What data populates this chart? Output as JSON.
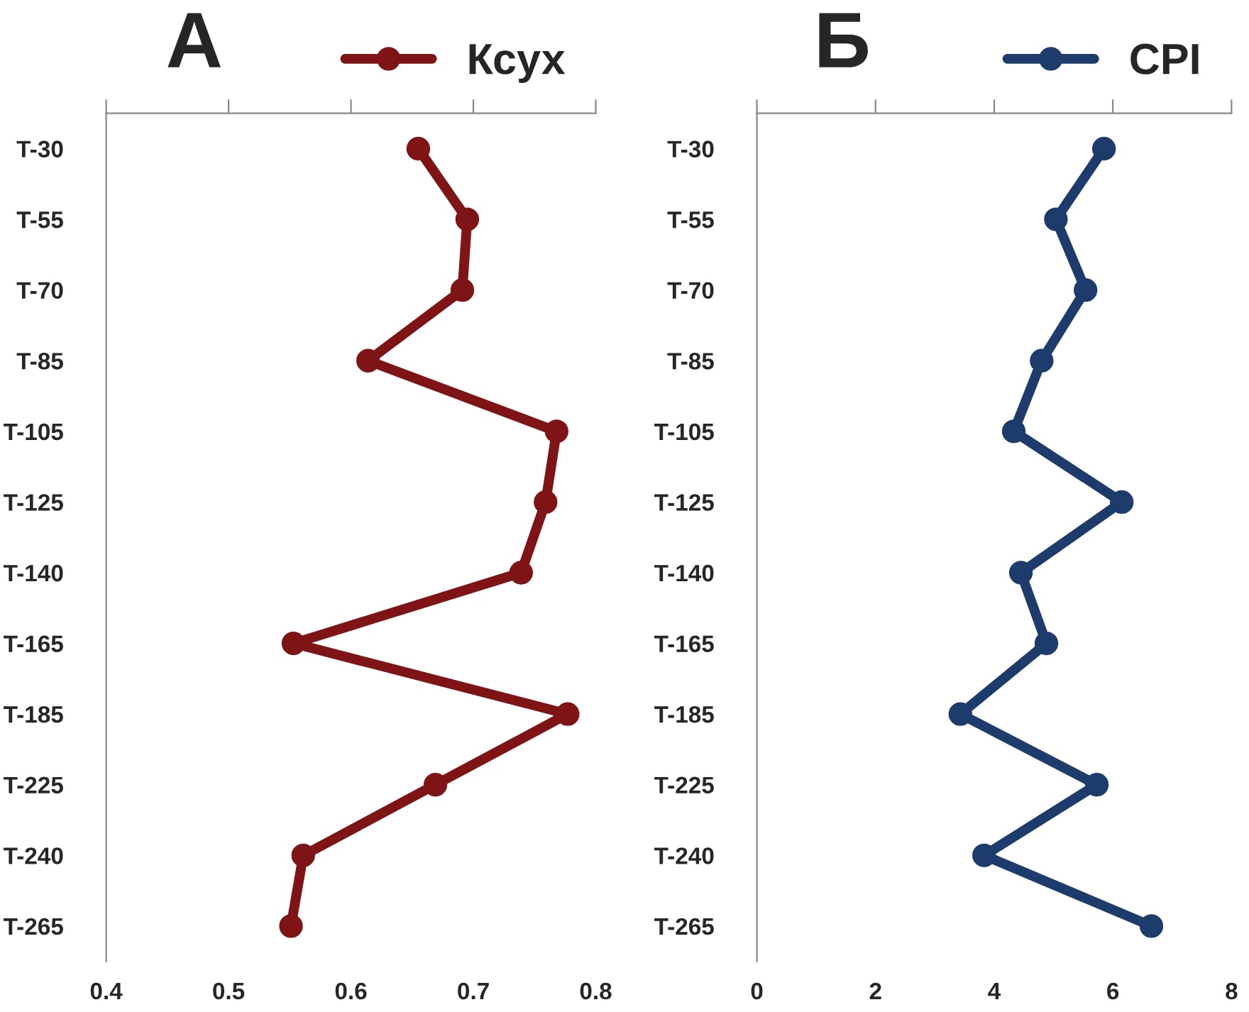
{
  "chart_data": [
    {
      "type": "line",
      "title": "А",
      "orientation": "horizontal",
      "categories": [
        "T-30",
        "T-55",
        "T-70",
        "T-85",
        "T-105",
        "T-125",
        "T-140",
        "T-165",
        "T-185",
        "T-225",
        "T-240",
        "T-265"
      ],
      "series": [
        {
          "name": "Ксух",
          "color": "#7f1416",
          "values": [
            0.655,
            0.695,
            0.691,
            0.614,
            0.768,
            0.759,
            0.739,
            0.553,
            0.777,
            0.669,
            0.561,
            0.551
          ]
        }
      ],
      "xlim": [
        0.4,
        0.8
      ],
      "xticks": [
        0.4,
        0.5,
        0.6,
        0.7,
        0.8
      ],
      "marker": "circle",
      "legend": "top right",
      "grid": false
    },
    {
      "type": "line",
      "title": "Б",
      "orientation": "horizontal",
      "categories": [
        "T-30",
        "T-55",
        "T-70",
        "T-85",
        "T-105",
        "T-125",
        "T-140",
        "T-165",
        "T-185",
        "T-225",
        "T-240",
        "T-265"
      ],
      "series": [
        {
          "name": "CPI",
          "color": "#1d3c6c",
          "values": [
            5.85,
            5.04,
            5.54,
            4.8,
            4.33,
            6.15,
            4.45,
            4.88,
            3.43,
            5.73,
            3.83,
            6.65
          ]
        }
      ],
      "xlim": [
        0,
        8
      ],
      "xticks": [
        0,
        2,
        4,
        6,
        8
      ],
      "marker": "circle",
      "legend": "top right",
      "grid": false
    }
  ]
}
